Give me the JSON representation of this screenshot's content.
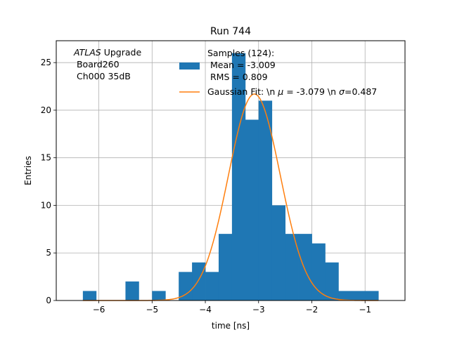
{
  "chart_data": {
    "type": "bar",
    "title": "Run 744",
    "xlabel": "time [ns]",
    "ylabel": "Entries",
    "xlim": [
      -6.8,
      -0.25
    ],
    "ylim": [
      0,
      27.3
    ],
    "grid": true,
    "xticks": [
      -6,
      -5,
      -4,
      -3,
      -2,
      -1
    ],
    "yticks": [
      0,
      5,
      10,
      15,
      20,
      25
    ],
    "bins": [
      {
        "x0": -6.3,
        "x1": -6.05,
        "count": 1
      },
      {
        "x0": -5.5,
        "x1": -5.25,
        "count": 2
      },
      {
        "x0": -5.0,
        "x1": -4.75,
        "count": 1
      },
      {
        "x0": -4.5,
        "x1": -4.25,
        "count": 3
      },
      {
        "x0": -4.25,
        "x1": -4.0,
        "count": 4
      },
      {
        "x0": -4.0,
        "x1": -3.75,
        "count": 3
      },
      {
        "x0": -3.75,
        "x1": -3.5,
        "count": 7
      },
      {
        "x0": -3.5,
        "x1": -3.25,
        "count": 26
      },
      {
        "x0": -3.25,
        "x1": -3.0,
        "count": 19
      },
      {
        "x0": -3.0,
        "x1": -2.75,
        "count": 21
      },
      {
        "x0": -2.75,
        "x1": -2.5,
        "count": 10
      },
      {
        "x0": -2.5,
        "x1": -2.25,
        "count": 7
      },
      {
        "x0": -2.25,
        "x1": -2.0,
        "count": 7
      },
      {
        "x0": -2.0,
        "x1": -1.75,
        "count": 6
      },
      {
        "x0": -1.75,
        "x1": -1.5,
        "count": 4
      },
      {
        "x0": -1.5,
        "x1": -1.25,
        "count": 1
      },
      {
        "x0": -1.25,
        "x1": -1.0,
        "count": 1
      },
      {
        "x0": -1.0,
        "x1": -0.75,
        "count": 1
      }
    ],
    "fit": {
      "mu": -3.079,
      "sigma": 0.487,
      "amplitude": 21.7,
      "x_range": [
        -6.3,
        -0.75
      ]
    },
    "colors": {
      "hist": "#1f77b4",
      "fit": "#ff7f0e",
      "grid": "#b0b0b0"
    },
    "annotation": {
      "italic": "ATLAS",
      "line1_rest": " Upgrade",
      "line2": " Board260",
      "line3": " Ch000 35dB"
    },
    "legend": {
      "placement": "top-right",
      "hist_line1": "Samples (124):",
      "hist_line2": " Mean = -3.009",
      "hist_line3": " RMS = 0.809",
      "fit_prefix": "Gaussian Fit: \\n ",
      "fit_mu_symbol": "μ",
      "fit_mid": " = -3.079 \\n ",
      "fit_sigma_symbol": "σ",
      "fit_suffix": "=0.487"
    }
  }
}
